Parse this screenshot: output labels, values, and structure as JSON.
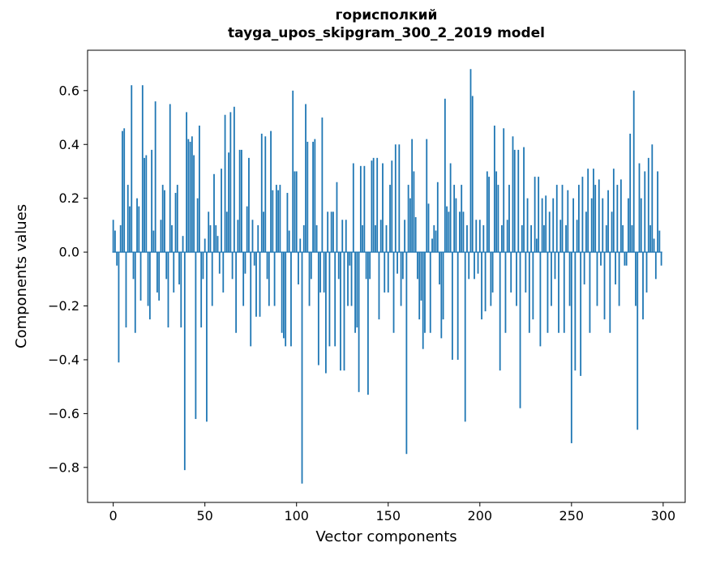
{
  "chart_data": {
    "type": "bar",
    "title": "горисполкий",
    "subtitle": "tayga_upos_skipgram_300_2_2019 model",
    "xlabel": "Vector components",
    "ylabel": "Components values",
    "bar_color": "#1f77b4",
    "background_color": "#ffffff",
    "legend": "off",
    "grid": "off",
    "xlim": [
      -14,
      312
    ],
    "ylim": [
      -0.93,
      0.75
    ],
    "xticks": [
      0,
      50,
      100,
      150,
      200,
      250,
      300
    ],
    "xtick_labels": [
      "0",
      "50",
      "100",
      "150",
      "200",
      "250",
      "300"
    ],
    "yticks": [
      0.6,
      0.4,
      0.2,
      0.0,
      -0.2,
      -0.4,
      -0.6,
      -0.8
    ],
    "ytick_labels": [
      "0.6",
      "0.4",
      "0.2",
      "0.0",
      "−0.2",
      "−0.4",
      "−0.6",
      "−0.8"
    ],
    "x_start": 0,
    "values": [
      0.12,
      0.08,
      -0.05,
      -0.41,
      0.1,
      0.45,
      0.46,
      -0.28,
      0.25,
      0.17,
      0.62,
      -0.1,
      -0.3,
      0.2,
      0.17,
      -0.18,
      0.62,
      0.35,
      0.36,
      -0.2,
      -0.25,
      0.38,
      0.08,
      0.56,
      -0.15,
      -0.18,
      0.12,
      0.25,
      0.23,
      -0.1,
      -0.28,
      0.55,
      0.1,
      -0.15,
      0.22,
      0.25,
      -0.12,
      -0.28,
      0.06,
      -0.81,
      0.52,
      0.42,
      0.41,
      0.43,
      0.36,
      -0.62,
      0.2,
      0.47,
      -0.28,
      -0.1,
      0.05,
      -0.63,
      0.15,
      0.1,
      -0.2,
      0.29,
      0.1,
      0.06,
      -0.08,
      0.31,
      -0.15,
      0.51,
      0.15,
      0.37,
      0.52,
      -0.1,
      0.54,
      -0.3,
      0.12,
      0.38,
      0.38,
      -0.2,
      -0.08,
      0.17,
      0.35,
      -0.35,
      0.12,
      -0.05,
      -0.24,
      0.1,
      -0.24,
      0.44,
      0.15,
      0.43,
      -0.1,
      -0.2,
      0.45,
      0.23,
      -0.2,
      0.25,
      0.23,
      0.25,
      -0.3,
      -0.32,
      -0.35,
      0.22,
      0.08,
      -0.35,
      0.6,
      0.3,
      0.3,
      -0.12,
      0.05,
      -0.86,
      0.1,
      0.55,
      0.41,
      -0.2,
      -0.1,
      0.41,
      0.42,
      0.1,
      -0.42,
      -0.15,
      0.5,
      -0.15,
      -0.45,
      0.15,
      -0.35,
      0.15,
      0.15,
      -0.35,
      0.26,
      -0.1,
      -0.44,
      0.12,
      -0.44,
      0.12,
      -0.2,
      -0.05,
      -0.2,
      0.33,
      -0.3,
      -0.28,
      -0.52,
      0.32,
      0.1,
      0.32,
      -0.1,
      -0.53,
      -0.1,
      0.34,
      0.35,
      0.1,
      0.35,
      -0.25,
      0.12,
      0.33,
      -0.15,
      0.1,
      -0.15,
      0.25,
      0.34,
      -0.3,
      0.4,
      -0.08,
      0.4,
      -0.2,
      -0.1,
      0.12,
      -0.75,
      0.25,
      0.2,
      0.42,
      0.3,
      0.13,
      -0.1,
      -0.25,
      -0.18,
      -0.36,
      -0.3,
      0.42,
      0.18,
      -0.3,
      0.05,
      0.1,
      0.08,
      0.26,
      -0.12,
      -0.32,
      -0.25,
      0.57,
      0.17,
      0.15,
      0.33,
      -0.4,
      0.25,
      0.2,
      -0.4,
      0.15,
      0.25,
      0.15,
      -0.63,
      0.1,
      -0.1,
      0.68,
      0.58,
      -0.1,
      0.12,
      -0.08,
      0.12,
      -0.25,
      0.1,
      -0.22,
      0.3,
      0.28,
      -0.2,
      -0.15,
      0.47,
      0.3,
      0.25,
      -0.44,
      0.1,
      0.46,
      -0.3,
      0.12,
      0.25,
      -0.15,
      0.43,
      0.38,
      -0.2,
      0.38,
      -0.58,
      0.1,
      0.39,
      -0.15,
      0.2,
      -0.3,
      0.1,
      -0.25,
      0.28,
      0.05,
      0.28,
      -0.35,
      0.2,
      0.1,
      0.21,
      -0.3,
      0.15,
      -0.2,
      0.2,
      -0.1,
      0.25,
      -0.3,
      0.12,
      0.25,
      -0.3,
      0.1,
      0.23,
      -0.2,
      -0.71,
      0.2,
      -0.44,
      0.12,
      0.25,
      -0.46,
      0.28,
      -0.12,
      0.15,
      0.31,
      -0.3,
      0.2,
      0.31,
      0.25,
      -0.2,
      0.27,
      -0.05,
      0.2,
      -0.25,
      0.1,
      0.23,
      -0.3,
      0.15,
      0.31,
      -0.12,
      0.25,
      -0.2,
      0.27,
      0.1,
      -0.05,
      -0.05,
      0.2,
      0.44,
      0.1,
      0.6,
      -0.2,
      -0.66,
      0.33,
      0.2,
      -0.25,
      0.3,
      -0.15,
      0.35,
      0.1,
      0.4,
      0.05,
      -0.1,
      0.3,
      0.08,
      -0.05
    ]
  }
}
